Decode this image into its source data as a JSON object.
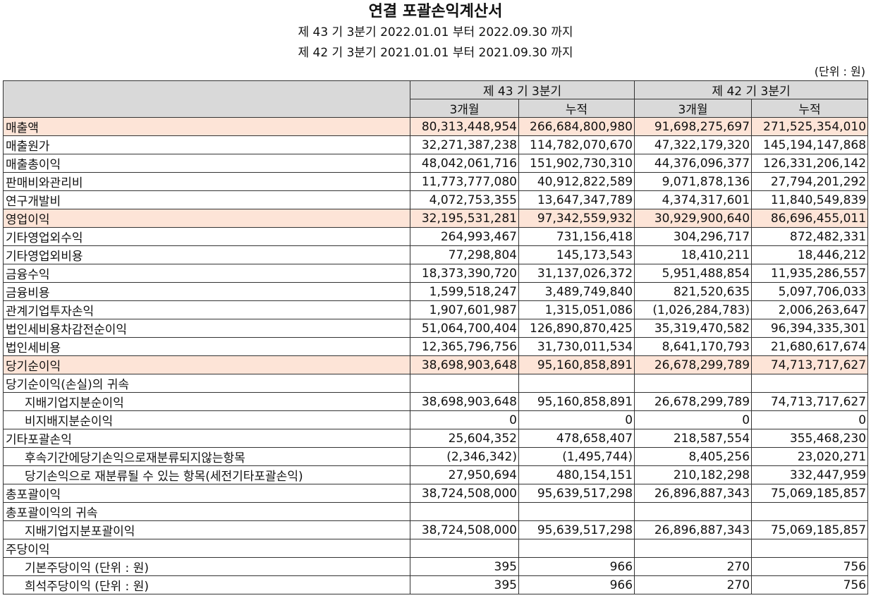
{
  "header": {
    "title": "연결 포괄손익계산서",
    "period1": "제 43 기 3분기 2022.01.01 부터 2022.09.30 까지",
    "period2": "제 42 기 3분기 2021.01.01 부터 2021.09.30 까지",
    "unit": "(단위 : 원)"
  },
  "columns": {
    "group1": "제 43 기 3분기",
    "group2": "제 42 기 3분기",
    "sub1": "3개월",
    "sub2": "누적",
    "sub3": "3개월",
    "sub4": "누적"
  },
  "rows": [
    {
      "label": "매출액",
      "indent": false,
      "hl": true,
      "v": [
        "80,313,448,954",
        "266,684,800,980",
        "91,698,275,697",
        "271,525,354,010"
      ]
    },
    {
      "label": "매출원가",
      "indent": false,
      "hl": false,
      "v": [
        "32,271,387,238",
        "114,782,070,670",
        "47,322,179,320",
        "145,194,147,868"
      ]
    },
    {
      "label": "매출총이익",
      "indent": false,
      "hl": false,
      "v": [
        "48,042,061,716",
        "151,902,730,310",
        "44,376,096,377",
        "126,331,206,142"
      ]
    },
    {
      "label": "판매비와관리비",
      "indent": false,
      "hl": false,
      "v": [
        "11,773,777,080",
        "40,912,822,589",
        "9,071,878,136",
        "27,794,201,292"
      ]
    },
    {
      "label": "연구개발비",
      "indent": false,
      "hl": false,
      "v": [
        "4,072,753,355",
        "13,647,347,789",
        "4,374,317,601",
        "11,840,549,839"
      ]
    },
    {
      "label": "영업이익",
      "indent": false,
      "hl": true,
      "v": [
        "32,195,531,281",
        "97,342,559,932",
        "30,929,900,640",
        "86,696,455,011"
      ]
    },
    {
      "label": "기타영업외수익",
      "indent": false,
      "hl": false,
      "v": [
        "264,993,467",
        "731,156,418",
        "304,296,717",
        "872,482,331"
      ]
    },
    {
      "label": "기타영업외비용",
      "indent": false,
      "hl": false,
      "v": [
        "77,298,804",
        "145,173,543",
        "18,410,211",
        "18,446,212"
      ]
    },
    {
      "label": "금융수익",
      "indent": false,
      "hl": false,
      "v": [
        "18,373,390,720",
        "31,137,026,372",
        "5,951,488,854",
        "11,935,286,557"
      ]
    },
    {
      "label": "금융비용",
      "indent": false,
      "hl": false,
      "v": [
        "1,599,518,247",
        "3,489,749,840",
        "821,520,635",
        "5,097,706,033"
      ]
    },
    {
      "label": "관계기업투자손익",
      "indent": false,
      "hl": false,
      "v": [
        "1,907,601,987",
        "1,315,051,086",
        "(1,026,284,783)",
        "2,006,263,647"
      ]
    },
    {
      "label": "법인세비용차감전순이익",
      "indent": false,
      "hl": false,
      "v": [
        "51,064,700,404",
        "126,890,870,425",
        "35,319,470,582",
        "96,394,335,301"
      ]
    },
    {
      "label": "법인세비용",
      "indent": false,
      "hl": false,
      "v": [
        "12,365,796,756",
        "31,730,011,534",
        "8,641,170,793",
        "21,680,617,674"
      ]
    },
    {
      "label": "당기순이익",
      "indent": false,
      "hl": true,
      "v": [
        "38,698,903,648",
        "95,160,858,891",
        "26,678,299,789",
        "74,713,717,627"
      ]
    },
    {
      "label": "당기순이익(손실)의 귀속",
      "indent": false,
      "hl": false,
      "v": [
        "",
        "",
        "",
        ""
      ]
    },
    {
      "label": "지배기업지분순이익",
      "indent": true,
      "hl": false,
      "v": [
        "38,698,903,648",
        "95,160,858,891",
        "26,678,299,789",
        "74,713,717,627"
      ]
    },
    {
      "label": "비지배지분순이익",
      "indent": true,
      "hl": false,
      "v": [
        "0",
        "0",
        "0",
        "0"
      ]
    },
    {
      "label": "기타포괄손익",
      "indent": false,
      "hl": false,
      "v": [
        "25,604,352",
        "478,658,407",
        "218,587,554",
        "355,468,230"
      ]
    },
    {
      "label": "후속기간에당기손익으로재분류되지않는항목",
      "indent": true,
      "hl": false,
      "v": [
        "(2,346,342)",
        "(1,495,744)",
        "8,405,256",
        "23,020,271"
      ]
    },
    {
      "label": "당기손익으로 재분류될 수 있는 항목(세전기타포괄손익)",
      "indent": true,
      "hl": false,
      "v": [
        "27,950,694",
        "480,154,151",
        "210,182,298",
        "332,447,959"
      ]
    },
    {
      "label": "총포괄이익",
      "indent": false,
      "hl": false,
      "v": [
        "38,724,508,000",
        "95,639,517,298",
        "26,896,887,343",
        "75,069,185,857"
      ]
    },
    {
      "label": "총포괄이익의 귀속",
      "indent": false,
      "hl": false,
      "v": [
        "",
        "",
        "",
        ""
      ]
    },
    {
      "label": "지배기업지분포괄이익",
      "indent": true,
      "hl": false,
      "v": [
        "38,724,508,000",
        "95,639,517,298",
        "26,896,887,343",
        "75,069,185,857"
      ]
    },
    {
      "label": "주당이익",
      "indent": false,
      "hl": false,
      "v": [
        "",
        "",
        "",
        ""
      ]
    },
    {
      "label": "기본주당이익 (단위 : 원)",
      "indent": true,
      "hl": false,
      "v": [
        "395",
        "966",
        "270",
        "756"
      ]
    },
    {
      "label": "희석주당이익 (단위 : 원)",
      "indent": true,
      "hl": false,
      "v": [
        "395",
        "966",
        "270",
        "756"
      ]
    }
  ]
}
